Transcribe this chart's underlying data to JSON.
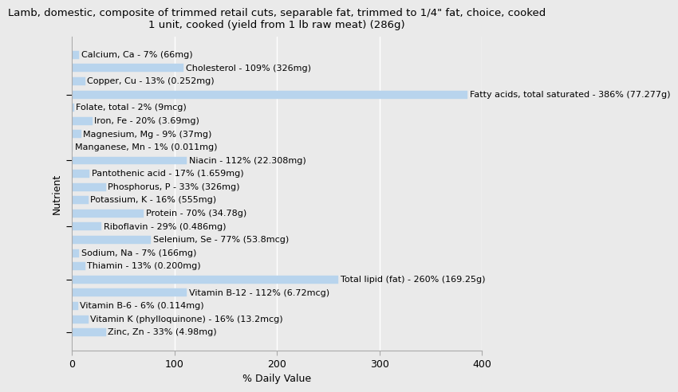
{
  "title_line1": "Lamb, domestic, composite of trimmed retail cuts, separable fat, trimmed to 1/4\" fat, choice, cooked",
  "title_line2": "1 unit, cooked (yield from 1 lb raw meat) (286g)",
  "xlabel": "% Daily Value",
  "ylabel": "Nutrient",
  "nutrients": [
    "Calcium, Ca - 7% (66mg)",
    "Cholesterol - 109% (326mg)",
    "Copper, Cu - 13% (0.252mg)",
    "Fatty acids, total saturated - 386% (77.277g)",
    "Folate, total - 2% (9mcg)",
    "Iron, Fe - 20% (3.69mg)",
    "Magnesium, Mg - 9% (37mg)",
    "Manganese, Mn - 1% (0.011mg)",
    "Niacin - 112% (22.308mg)",
    "Pantothenic acid - 17% (1.659mg)",
    "Phosphorus, P - 33% (326mg)",
    "Potassium, K - 16% (555mg)",
    "Protein - 70% (34.78g)",
    "Riboflavin - 29% (0.486mg)",
    "Selenium, Se - 77% (53.8mcg)",
    "Sodium, Na - 7% (166mg)",
    "Thiamin - 13% (0.200mg)",
    "Total lipid (fat) - 260% (169.25g)",
    "Vitamin B-12 - 112% (6.72mcg)",
    "Vitamin B-6 - 6% (0.114mg)",
    "Vitamin K (phylloquinone) - 16% (13.2mcg)",
    "Zinc, Zn - 33% (4.98mg)"
  ],
  "values": [
    7,
    109,
    13,
    386,
    2,
    20,
    9,
    1,
    112,
    17,
    33,
    16,
    70,
    29,
    77,
    7,
    13,
    260,
    112,
    6,
    16,
    33
  ],
  "bar_color": "#b8d4ed",
  "bar_edge_color": "#b8d4ed",
  "background_color": "#eaeaea",
  "plot_bg_color": "#eaeaea",
  "xlim": [
    0,
    400
  ],
  "xticks": [
    0,
    100,
    200,
    300,
    400
  ],
  "title_fontsize": 9.5,
  "axis_label_fontsize": 9,
  "tick_fontsize": 9,
  "bar_label_fontsize": 8,
  "ytick_positions": [
    3,
    8,
    13,
    17,
    21
  ],
  "grid_color": "#ffffff",
  "spine_color": "#aaaaaa"
}
